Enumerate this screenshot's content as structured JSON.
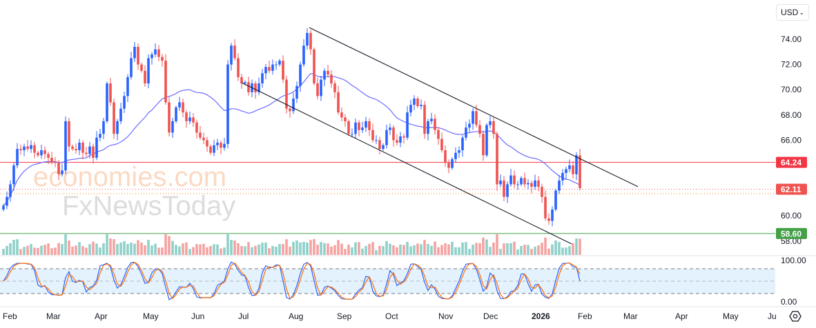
{
  "currency_selector": {
    "value": "USD",
    "icon": "chevron-down-icon"
  },
  "settings_icon": "gear-hexagon-icon",
  "watermark": {
    "line1": "economies.com",
    "line2": "FxNewsToday"
  },
  "chart_data": {
    "type": "candlestick",
    "title": "",
    "currency": "USD",
    "price_axis": {
      "ticks": [
        "74.00",
        "72.00",
        "70.00",
        "68.00",
        "66.00",
        "60.00",
        "58.00"
      ],
      "ylim": [
        57.5,
        75.2
      ]
    },
    "time_axis": {
      "ticks": [
        "Feb",
        "Mar",
        "Apr",
        "May",
        "Jun",
        "Jul",
        "Aug",
        "Sep",
        "Oct",
        "Nov",
        "Dec",
        "2026",
        "Feb",
        "Mar",
        "Apr",
        "May",
        "Ju"
      ]
    },
    "closes": [
      60.8,
      61.5,
      62.5,
      64,
      65.3,
      65.2,
      65.5,
      65.3,
      65.6,
      65,
      64.8,
      65.2,
      64.9,
      64.6,
      64.3,
      64.2,
      63.3,
      63.6,
      67.5,
      65.5,
      65.3,
      65.2,
      65.8,
      65,
      64.9,
      65.5,
      64.6,
      66.2,
      66.5,
      67.5,
      70.5,
      69,
      66.5,
      67.5,
      68.5,
      69.5,
      71,
      72.5,
      73.4,
      72,
      71.5,
      70.5,
      72.5,
      72.8,
      73.2,
      72.6,
      72.3,
      69,
      66.6,
      67.5,
      68.6,
      69,
      68.2,
      67.5,
      67.8,
      67.4,
      66.6,
      66.2,
      66,
      65.5,
      65,
      65.6,
      65.8,
      65.4,
      65.7,
      72,
      73.5,
      72.5,
      71,
      70.5,
      70.6,
      69.8,
      70.5,
      69.8,
      70.5,
      71.3,
      71.8,
      71.5,
      72,
      72,
      72.3,
      70.8,
      68.5,
      68.3,
      69.3,
      70.3,
      72,
      73.5,
      74.5,
      73.2,
      70.5,
      69.5,
      70.8,
      71.5,
      71.2,
      70.5,
      69.8,
      68.2,
      67.8,
      67.5,
      66.5,
      66.5,
      67.4,
      66.8,
      67,
      67.5,
      66.8,
      66,
      66,
      65.3,
      65.6,
      66.8,
      67,
      66,
      65.8,
      66.3,
      66.2,
      68.2,
      68.8,
      69.3,
      68.7,
      68.8,
      66.5,
      67.5,
      67.7,
      66.8,
      66.1,
      65.2,
      64.2,
      63.8,
      64.5,
      65,
      65.2,
      66.2,
      67,
      67.3,
      68.3,
      67.2,
      66.5,
      64.8,
      67.2,
      67.5,
      66.5,
      62.5,
      62.8,
      61.5,
      62.5,
      63.2,
      62.5,
      62.5,
      63,
      62.5,
      62.6,
      62.3,
      62.8,
      62.3,
      61.5,
      59.8,
      59.6,
      60.5,
      62,
      62.8,
      63.4,
      63.7,
      64,
      63.3,
      64.8,
      62.2
    ],
    "moving_average": {
      "period": 25,
      "color": "#6b6bff"
    },
    "horizontal_levels": [
      {
        "name": "resistance",
        "value": 64.24,
        "label": "64.24",
        "color": "#f23645",
        "style": "solid"
      },
      {
        "name": "last-price",
        "value": 62.11,
        "label": "62.11",
        "color": "#ef5350",
        "style": "dotted"
      },
      {
        "name": "prev-close",
        "value": 61.76,
        "color": "#f57c00",
        "style": "dotted"
      },
      {
        "name": "support",
        "value": 58.6,
        "label": "58.60",
        "color": "#43a047",
        "style": "solid"
      }
    ],
    "channel": {
      "upper": {
        "from": [
          88.6,
          74.93
        ],
        "to": [
          183.8,
          62.31
        ]
      },
      "lower": {
        "from": [
          69,
          70.56
        ],
        "to": [
          164.6,
          57.77
        ]
      }
    },
    "stochastic": {
      "period": 7,
      "upper": 80,
      "lower": 20,
      "axis_ticks": [
        "100.00",
        "0.00"
      ],
      "k_color": "#2962ff",
      "d_color": "#ff6d00"
    },
    "colors": {
      "up": "#2962ff",
      "down": "#ef5350",
      "vol_up": "#8fd1c9",
      "vol_down": "#f5a3a1"
    }
  }
}
